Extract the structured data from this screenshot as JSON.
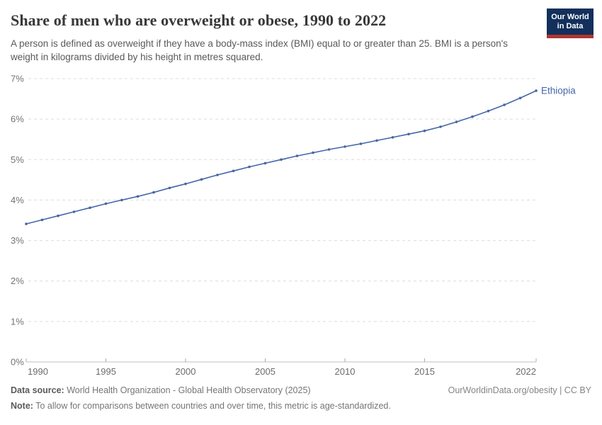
{
  "header": {
    "title": "Share of men who are overweight or obese, 1990 to 2022",
    "subtitle": "A person is defined as overweight if they have a body-mass index (BMI) equal to or greater than 25. BMI is a person's weight in kilograms divided by his height in metres squared.",
    "logo": {
      "line1": "Our World",
      "line2": "in Data",
      "bg_color": "#12305b",
      "accent_color": "#b0352f"
    }
  },
  "chart_data": {
    "type": "line",
    "title": "Share of men who are overweight or obese, 1990 to 2022",
    "xlabel": "",
    "ylabel": "",
    "x": [
      1990,
      1991,
      1992,
      1993,
      1994,
      1995,
      1996,
      1997,
      1998,
      1999,
      2000,
      2001,
      2002,
      2003,
      2004,
      2005,
      2006,
      2007,
      2008,
      2009,
      2010,
      2011,
      2012,
      2013,
      2014,
      2015,
      2016,
      2017,
      2018,
      2019,
      2020,
      2021,
      2022
    ],
    "series": [
      {
        "name": "Ethiopia",
        "color": "#4666a6",
        "values": [
          3.41,
          3.51,
          3.61,
          3.71,
          3.81,
          3.91,
          4.0,
          4.09,
          4.19,
          4.3,
          4.4,
          4.51,
          4.62,
          4.72,
          4.82,
          4.91,
          5.0,
          5.09,
          5.17,
          5.25,
          5.32,
          5.39,
          5.47,
          5.55,
          5.63,
          5.71,
          5.81,
          5.93,
          6.06,
          6.2,
          6.35,
          6.52,
          6.7
        ]
      }
    ],
    "ylim": [
      0,
      7
    ],
    "ytick_values": [
      0,
      1,
      2,
      3,
      4,
      5,
      6,
      7
    ],
    "yticks": [
      "0%",
      "1%",
      "2%",
      "3%",
      "4%",
      "5%",
      "6%",
      "7%"
    ],
    "xticks": [
      1990,
      1995,
      2000,
      2005,
      2010,
      2015,
      2022
    ],
    "grid": "horizontal-dashed",
    "legend_position": "end-of-line-label",
    "colors": {
      "gridline": "#dcdcdc",
      "axis": "#c2c2c2",
      "tick": "#ababab",
      "y_label": "#737373",
      "x_label": "#6b6b6b"
    }
  },
  "footer": {
    "source_label": "Data source:",
    "source_text": " World Health Organization - Global Health Observatory (2025)",
    "credit": "OurWorldinData.org/obesity | CC BY",
    "note_label": "Note:",
    "note_text": " To allow for comparisons between countries and over time, this metric is age-standardized."
  }
}
